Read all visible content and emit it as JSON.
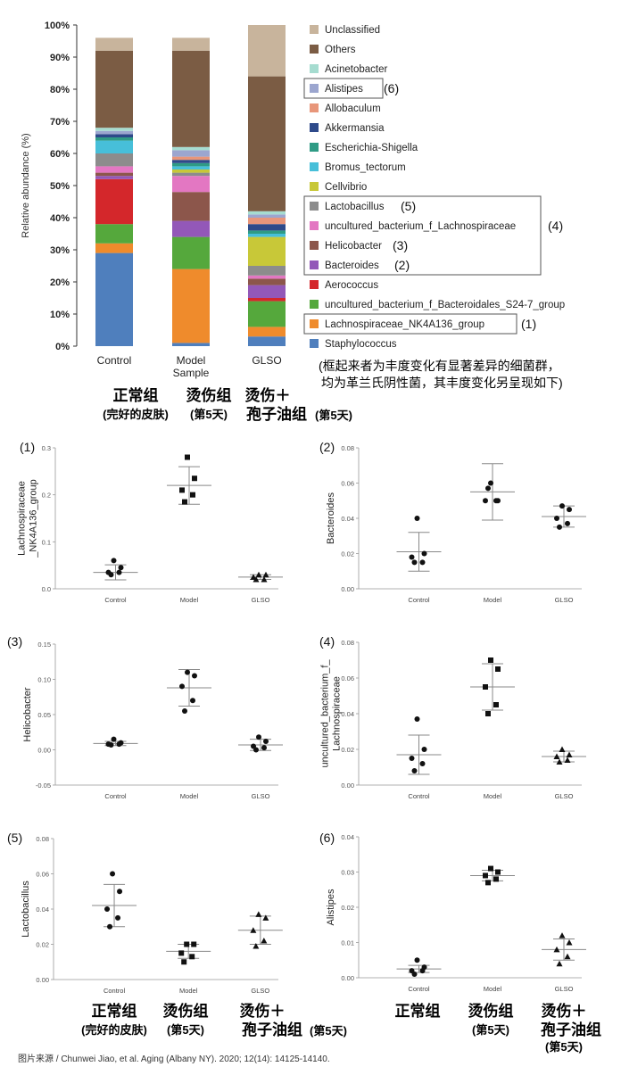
{
  "source": "图片来源 / Chunwei Jiao, et al. Aging (Albany NY). 2020; 12(14): 14125-14140.",
  "groups_cn": {
    "control": "正常组",
    "control_sub": "(完好的皮肤)",
    "model": "烫伤组",
    "model_sub": "(第5天)",
    "glso": "烫伤＋",
    "glso_line2": "孢子油组",
    "glso_sub": "(第5天)"
  },
  "note_line1": "(框起来者为丰度变化有显著差异的细菌群，",
  "note_line2": "均为革兰氏阴性菌，其丰度变化另呈现如下)",
  "chart_data": [
    {
      "type": "bar",
      "stacked": true,
      "ylabel": "Relative abundance (%)",
      "ylim": [
        0,
        100
      ],
      "yticks": [
        "0%",
        "10%",
        "20%",
        "30%",
        "40%",
        "50%",
        "60%",
        "70%",
        "80%",
        "90%",
        "100%"
      ],
      "categories": [
        "Control",
        "Model\nSample",
        "GLSO"
      ],
      "series": [
        {
          "name": "Staphylococcus",
          "color": "#4f7fbd",
          "values": [
            29,
            1,
            3
          ]
        },
        {
          "name": "Lachnospiraceae_NK4A136_group",
          "color": "#ef8b2c",
          "values": [
            3,
            23,
            3
          ],
          "label": "(1)"
        },
        {
          "name": "uncultured_bacterium_f_Bacteroidales_S24-7_group",
          "color": "#55a83c",
          "values": [
            6,
            10,
            8
          ]
        },
        {
          "name": "Aerococcus",
          "color": "#d4272b",
          "values": [
            14,
            0,
            1
          ]
        },
        {
          "name": "Bacteroides",
          "color": "#9358b8",
          "values": [
            1,
            5,
            4
          ],
          "label": "(2)"
        },
        {
          "name": "Helicobacter",
          "color": "#8c564b",
          "values": [
            1,
            9,
            2
          ],
          "label": "(3)"
        },
        {
          "name": "uncultured_bacterium_f_Lachnospiraceae",
          "color": "#e377c2",
          "values": [
            2,
            5,
            1
          ],
          "label": "(4)"
        },
        {
          "name": "Lactobacillus",
          "color": "#8c8c8c",
          "values": [
            4,
            1,
            3
          ],
          "label": "(5)"
        },
        {
          "name": "Cellvibrio",
          "color": "#c8c838",
          "values": [
            0,
            1,
            9
          ]
        },
        {
          "name": "Bromus_tectorum",
          "color": "#47bfd9",
          "values": [
            4,
            1,
            1
          ]
        },
        {
          "name": "Escherichia-Shigella",
          "color": "#2f9b85",
          "values": [
            1,
            1,
            1
          ]
        },
        {
          "name": "Akkermansia",
          "color": "#2e4a8a",
          "values": [
            1,
            1,
            2
          ]
        },
        {
          "name": "Allobaculum",
          "color": "#e8967a",
          "values": [
            0,
            1,
            2
          ]
        },
        {
          "name": "Alistipes",
          "color": "#9ca6cf",
          "values": [
            1,
            2,
            1
          ],
          "label": "(6)"
        },
        {
          "name": "Acinetobacter",
          "color": "#a6dcd0",
          "values": [
            1,
            1,
            1
          ]
        },
        {
          "name": "Others",
          "color": "#7b5c44",
          "values": [
            24,
            30,
            42
          ]
        },
        {
          "name": "Unclassified",
          "color": "#c8b49c",
          "values": [
            4,
            4,
            16
          ]
        }
      ],
      "boxed_groups": [
        [
          "Alistipes"
        ],
        [
          "Lactobacillus",
          "uncultured_bacterium_f_Lachnospiraceae",
          "Helicobacter",
          "Bacteroides"
        ],
        [
          "Lachnospiraceae_NK4A136_group"
        ]
      ]
    },
    {
      "type": "scatter",
      "panel_label": "(1)",
      "ylabel": "Lachnospiraceae\n_NK4A136_group",
      "ylim": [
        0,
        0.3
      ],
      "yticks": [
        "0.0",
        "0.1",
        "0.2",
        "0.3"
      ],
      "categories": [
        "Control",
        "Model",
        "GLSO"
      ],
      "markers": [
        "circle",
        "square",
        "triangle"
      ],
      "points": [
        [
          0.06,
          0.045,
          0.035,
          0.035,
          0.03
        ],
        [
          0.28,
          0.235,
          0.21,
          0.2,
          0.185
        ],
        [
          0.03,
          0.03,
          0.025,
          0.02,
          0.02
        ]
      ],
      "mean": [
        0.035,
        0.22,
        0.025
      ],
      "sd": [
        0.016,
        0.04,
        0.005
      ]
    },
    {
      "type": "scatter",
      "panel_label": "(2)",
      "ylabel": "Bacteroides",
      "ylim": [
        0,
        0.08
      ],
      "yticks": [
        "0.00",
        "0.02",
        "0.04",
        "0.06",
        "0.08"
      ],
      "categories": [
        "Control",
        "Model",
        "GLSO"
      ],
      "markers": [
        "circle",
        "circle",
        "circle"
      ],
      "points": [
        [
          0.04,
          0.02,
          0.018,
          0.015,
          0.015
        ],
        [
          0.06,
          0.05,
          0.05,
          0.05,
          0.057
        ],
        [
          0.047,
          0.045,
          0.04,
          0.037,
          0.035
        ]
      ],
      "mean": [
        0.021,
        0.055,
        0.041
      ],
      "sd": [
        0.011,
        0.016,
        0.006
      ]
    },
    {
      "type": "scatter",
      "panel_label": "(3)",
      "ylabel": "Helicobacter",
      "ylim": [
        -0.05,
        0.15
      ],
      "yticks": [
        "-0.05",
        "0.00",
        "0.05",
        "0.10",
        "0.15"
      ],
      "categories": [
        "Control",
        "Model",
        "GLSO"
      ],
      "markers": [
        "circle",
        "circle",
        "circle"
      ],
      "points": [
        [
          0.015,
          0.01,
          0.008,
          0.008,
          0.007
        ],
        [
          0.11,
          0.105,
          0.09,
          0.07,
          0.055
        ],
        [
          0.018,
          0.012,
          0.005,
          0.003,
          0.0
        ]
      ],
      "mean": [
        0.009,
        0.088,
        0.007
      ],
      "sd": [
        0.003,
        0.026,
        0.008
      ]
    },
    {
      "type": "scatter",
      "panel_label": "(4)",
      "ylabel": "uncultured_bacterium_f_\nLachnospiraceae",
      "ylim": [
        0,
        0.08
      ],
      "yticks": [
        "0.00",
        "0.02",
        "0.04",
        "0.06",
        "0.08"
      ],
      "categories": [
        "Control",
        "Model",
        "GLSO"
      ],
      "markers": [
        "circle",
        "square",
        "triangle"
      ],
      "points": [
        [
          0.037,
          0.02,
          0.015,
          0.012,
          0.008
        ],
        [
          0.07,
          0.065,
          0.055,
          0.045,
          0.04
        ],
        [
          0.02,
          0.017,
          0.016,
          0.014,
          0.013
        ]
      ],
      "mean": [
        0.017,
        0.055,
        0.016
      ],
      "sd": [
        0.011,
        0.013,
        0.003
      ]
    },
    {
      "type": "scatter",
      "panel_label": "(5)",
      "ylabel": "Lactobacillus",
      "ylim": [
        0,
        0.08
      ],
      "yticks": [
        "0.00",
        "0.02",
        "0.04",
        "0.06",
        "0.08"
      ],
      "categories": [
        "Control",
        "Model",
        "GLSO"
      ],
      "markers": [
        "circle",
        "square",
        "triangle"
      ],
      "points": [
        [
          0.06,
          0.05,
          0.04,
          0.035,
          0.03
        ],
        [
          0.02,
          0.02,
          0.015,
          0.013,
          0.01
        ],
        [
          0.037,
          0.035,
          0.028,
          0.022,
          0.019
        ]
      ],
      "mean": [
        0.042,
        0.016,
        0.028
      ],
      "sd": [
        0.012,
        0.004,
        0.008
      ]
    },
    {
      "type": "scatter",
      "panel_label": "(6)",
      "ylabel": "Alistipes",
      "ylim": [
        0,
        0.04
      ],
      "yticks": [
        "0.00",
        "0.01",
        "0.02",
        "0.03",
        "0.04"
      ],
      "categories": [
        "Control",
        "Model",
        "GLSO"
      ],
      "markers": [
        "circle",
        "square",
        "triangle"
      ],
      "points": [
        [
          0.005,
          0.003,
          0.002,
          0.002,
          0.001
        ],
        [
          0.031,
          0.03,
          0.029,
          0.028,
          0.027
        ],
        [
          0.012,
          0.01,
          0.008,
          0.006,
          0.004
        ]
      ],
      "mean": [
        0.0025,
        0.029,
        0.008
      ],
      "sd": [
        0.001,
        0.0015,
        0.003
      ]
    }
  ]
}
